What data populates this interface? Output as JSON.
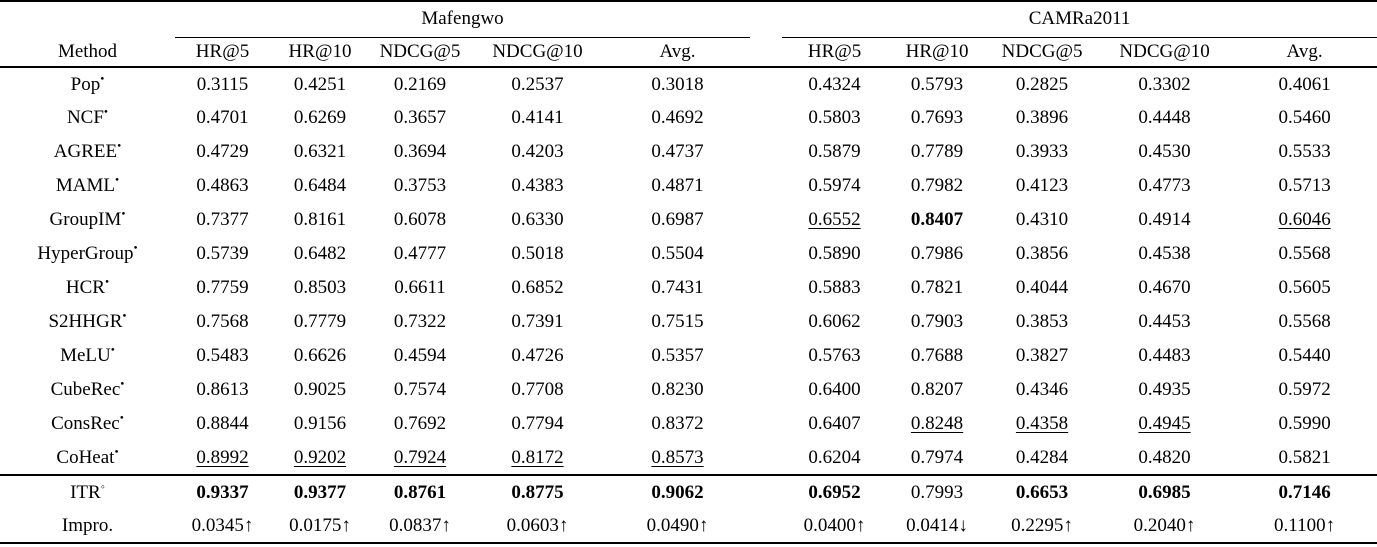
{
  "colors": {
    "text": "#000000",
    "background": "#ffffff",
    "rule": "#000000"
  },
  "table": {
    "method_header": "Method",
    "groups": [
      {
        "label": "Mafengwo",
        "columns": [
          "HR@5",
          "HR@10",
          "NDCG@5",
          "NDCG@10",
          "Avg."
        ]
      },
      {
        "label": "CAMRa2011",
        "columns": [
          "HR@5",
          "HR@10",
          "NDCG@5",
          "NDCG@10",
          "Avg."
        ]
      }
    ],
    "rows": [
      {
        "method": "Pop",
        "mark": "•",
        "cells": [
          {
            "v": "0.3115"
          },
          {
            "v": "0.4251"
          },
          {
            "v": "0.2169"
          },
          {
            "v": "0.2537"
          },
          {
            "v": "0.3018"
          },
          {
            "v": "0.4324"
          },
          {
            "v": "0.5793"
          },
          {
            "v": "0.2825"
          },
          {
            "v": "0.3302"
          },
          {
            "v": "0.4061"
          }
        ]
      },
      {
        "method": "NCF",
        "mark": "•",
        "cells": [
          {
            "v": "0.4701"
          },
          {
            "v": "0.6269"
          },
          {
            "v": "0.3657"
          },
          {
            "v": "0.4141"
          },
          {
            "v": "0.4692"
          },
          {
            "v": "0.5803"
          },
          {
            "v": "0.7693"
          },
          {
            "v": "0.3896"
          },
          {
            "v": "0.4448"
          },
          {
            "v": "0.5460"
          }
        ]
      },
      {
        "method": "AGREE",
        "mark": "•",
        "cells": [
          {
            "v": "0.4729"
          },
          {
            "v": "0.6321"
          },
          {
            "v": "0.3694"
          },
          {
            "v": "0.4203"
          },
          {
            "v": "0.4737"
          },
          {
            "v": "0.5879"
          },
          {
            "v": "0.7789"
          },
          {
            "v": "0.3933"
          },
          {
            "v": "0.4530"
          },
          {
            "v": "0.5533"
          }
        ]
      },
      {
        "method": "MAML",
        "mark": "•",
        "cells": [
          {
            "v": "0.4863"
          },
          {
            "v": "0.6484"
          },
          {
            "v": "0.3753"
          },
          {
            "v": "0.4383"
          },
          {
            "v": "0.4871"
          },
          {
            "v": "0.5974"
          },
          {
            "v": "0.7982"
          },
          {
            "v": "0.4123"
          },
          {
            "v": "0.4773"
          },
          {
            "v": "0.5713"
          }
        ]
      },
      {
        "method": "GroupIM",
        "mark": "•",
        "cells": [
          {
            "v": "0.7377"
          },
          {
            "v": "0.8161"
          },
          {
            "v": "0.6078"
          },
          {
            "v": "0.6330"
          },
          {
            "v": "0.6987"
          },
          {
            "v": "0.6552",
            "s": "u"
          },
          {
            "v": "0.8407",
            "s": "b"
          },
          {
            "v": "0.4310"
          },
          {
            "v": "0.4914"
          },
          {
            "v": "0.6046",
            "s": "u"
          }
        ]
      },
      {
        "method": "HyperGroup",
        "mark": "•",
        "cells": [
          {
            "v": "0.5739"
          },
          {
            "v": "0.6482"
          },
          {
            "v": "0.4777"
          },
          {
            "v": "0.5018"
          },
          {
            "v": "0.5504"
          },
          {
            "v": "0.5890"
          },
          {
            "v": "0.7986"
          },
          {
            "v": "0.3856"
          },
          {
            "v": "0.4538"
          },
          {
            "v": "0.5568"
          }
        ]
      },
      {
        "method": "HCR",
        "mark": "•",
        "cells": [
          {
            "v": "0.7759"
          },
          {
            "v": "0.8503"
          },
          {
            "v": "0.6611"
          },
          {
            "v": "0.6852"
          },
          {
            "v": "0.7431"
          },
          {
            "v": "0.5883"
          },
          {
            "v": "0.7821"
          },
          {
            "v": "0.4044"
          },
          {
            "v": "0.4670"
          },
          {
            "v": "0.5605"
          }
        ]
      },
      {
        "method": "S2HHGR",
        "mark": "•",
        "cells": [
          {
            "v": "0.7568"
          },
          {
            "v": "0.7779"
          },
          {
            "v": "0.7322"
          },
          {
            "v": "0.7391"
          },
          {
            "v": "0.7515"
          },
          {
            "v": "0.6062"
          },
          {
            "v": "0.7903"
          },
          {
            "v": "0.3853"
          },
          {
            "v": "0.4453"
          },
          {
            "v": "0.5568"
          }
        ]
      },
      {
        "method": "MeLU",
        "mark": "•",
        "cells": [
          {
            "v": "0.5483"
          },
          {
            "v": "0.6626"
          },
          {
            "v": "0.4594"
          },
          {
            "v": "0.4726"
          },
          {
            "v": "0.5357"
          },
          {
            "v": "0.5763"
          },
          {
            "v": "0.7688"
          },
          {
            "v": "0.3827"
          },
          {
            "v": "0.4483"
          },
          {
            "v": "0.5440"
          }
        ]
      },
      {
        "method": "CubeRec",
        "mark": "•",
        "cells": [
          {
            "v": "0.8613"
          },
          {
            "v": "0.9025"
          },
          {
            "v": "0.7574"
          },
          {
            "v": "0.7708"
          },
          {
            "v": "0.8230"
          },
          {
            "v": "0.6400"
          },
          {
            "v": "0.8207"
          },
          {
            "v": "0.4346"
          },
          {
            "v": "0.4935"
          },
          {
            "v": "0.5972"
          }
        ]
      },
      {
        "method": "ConsRec",
        "mark": "•",
        "cells": [
          {
            "v": "0.8844"
          },
          {
            "v": "0.9156"
          },
          {
            "v": "0.7692"
          },
          {
            "v": "0.7794"
          },
          {
            "v": "0.8372"
          },
          {
            "v": "0.6407"
          },
          {
            "v": "0.8248",
            "s": "u"
          },
          {
            "v": "0.4358",
            "s": "u"
          },
          {
            "v": "0.4945",
            "s": "u"
          },
          {
            "v": "0.5990"
          }
        ]
      },
      {
        "method": "CoHeat",
        "mark": "•",
        "rule_below": true,
        "cells": [
          {
            "v": "0.8992",
            "s": "u"
          },
          {
            "v": "0.9202",
            "s": "u"
          },
          {
            "v": "0.7924",
            "s": "u"
          },
          {
            "v": "0.8172",
            "s": "u"
          },
          {
            "v": "0.8573",
            "s": "u"
          },
          {
            "v": "0.6204"
          },
          {
            "v": "0.7974"
          },
          {
            "v": "0.4284"
          },
          {
            "v": "0.4820"
          },
          {
            "v": "0.5821"
          }
        ]
      },
      {
        "method": "ITR",
        "mark": "◦",
        "cells": [
          {
            "v": "0.9337",
            "s": "b"
          },
          {
            "v": "0.9377",
            "s": "b"
          },
          {
            "v": "0.8761",
            "s": "b"
          },
          {
            "v": "0.8775",
            "s": "b"
          },
          {
            "v": "0.9062",
            "s": "b"
          },
          {
            "v": "0.6952",
            "s": "b"
          },
          {
            "v": "0.7993"
          },
          {
            "v": "0.6653",
            "s": "b"
          },
          {
            "v": "0.6985",
            "s": "b"
          },
          {
            "v": "0.7146",
            "s": "b"
          }
        ]
      },
      {
        "method": "Impro.",
        "mark": "",
        "cells": [
          {
            "v": "0.0345↑"
          },
          {
            "v": "0.0175↑"
          },
          {
            "v": "0.0837↑"
          },
          {
            "v": "0.0603↑"
          },
          {
            "v": "0.0490↑"
          },
          {
            "v": "0.0400↑"
          },
          {
            "v": "0.0414↓"
          },
          {
            "v": "0.2295↑"
          },
          {
            "v": "0.2040↑"
          },
          {
            "v": "0.1100↑"
          }
        ]
      }
    ]
  }
}
